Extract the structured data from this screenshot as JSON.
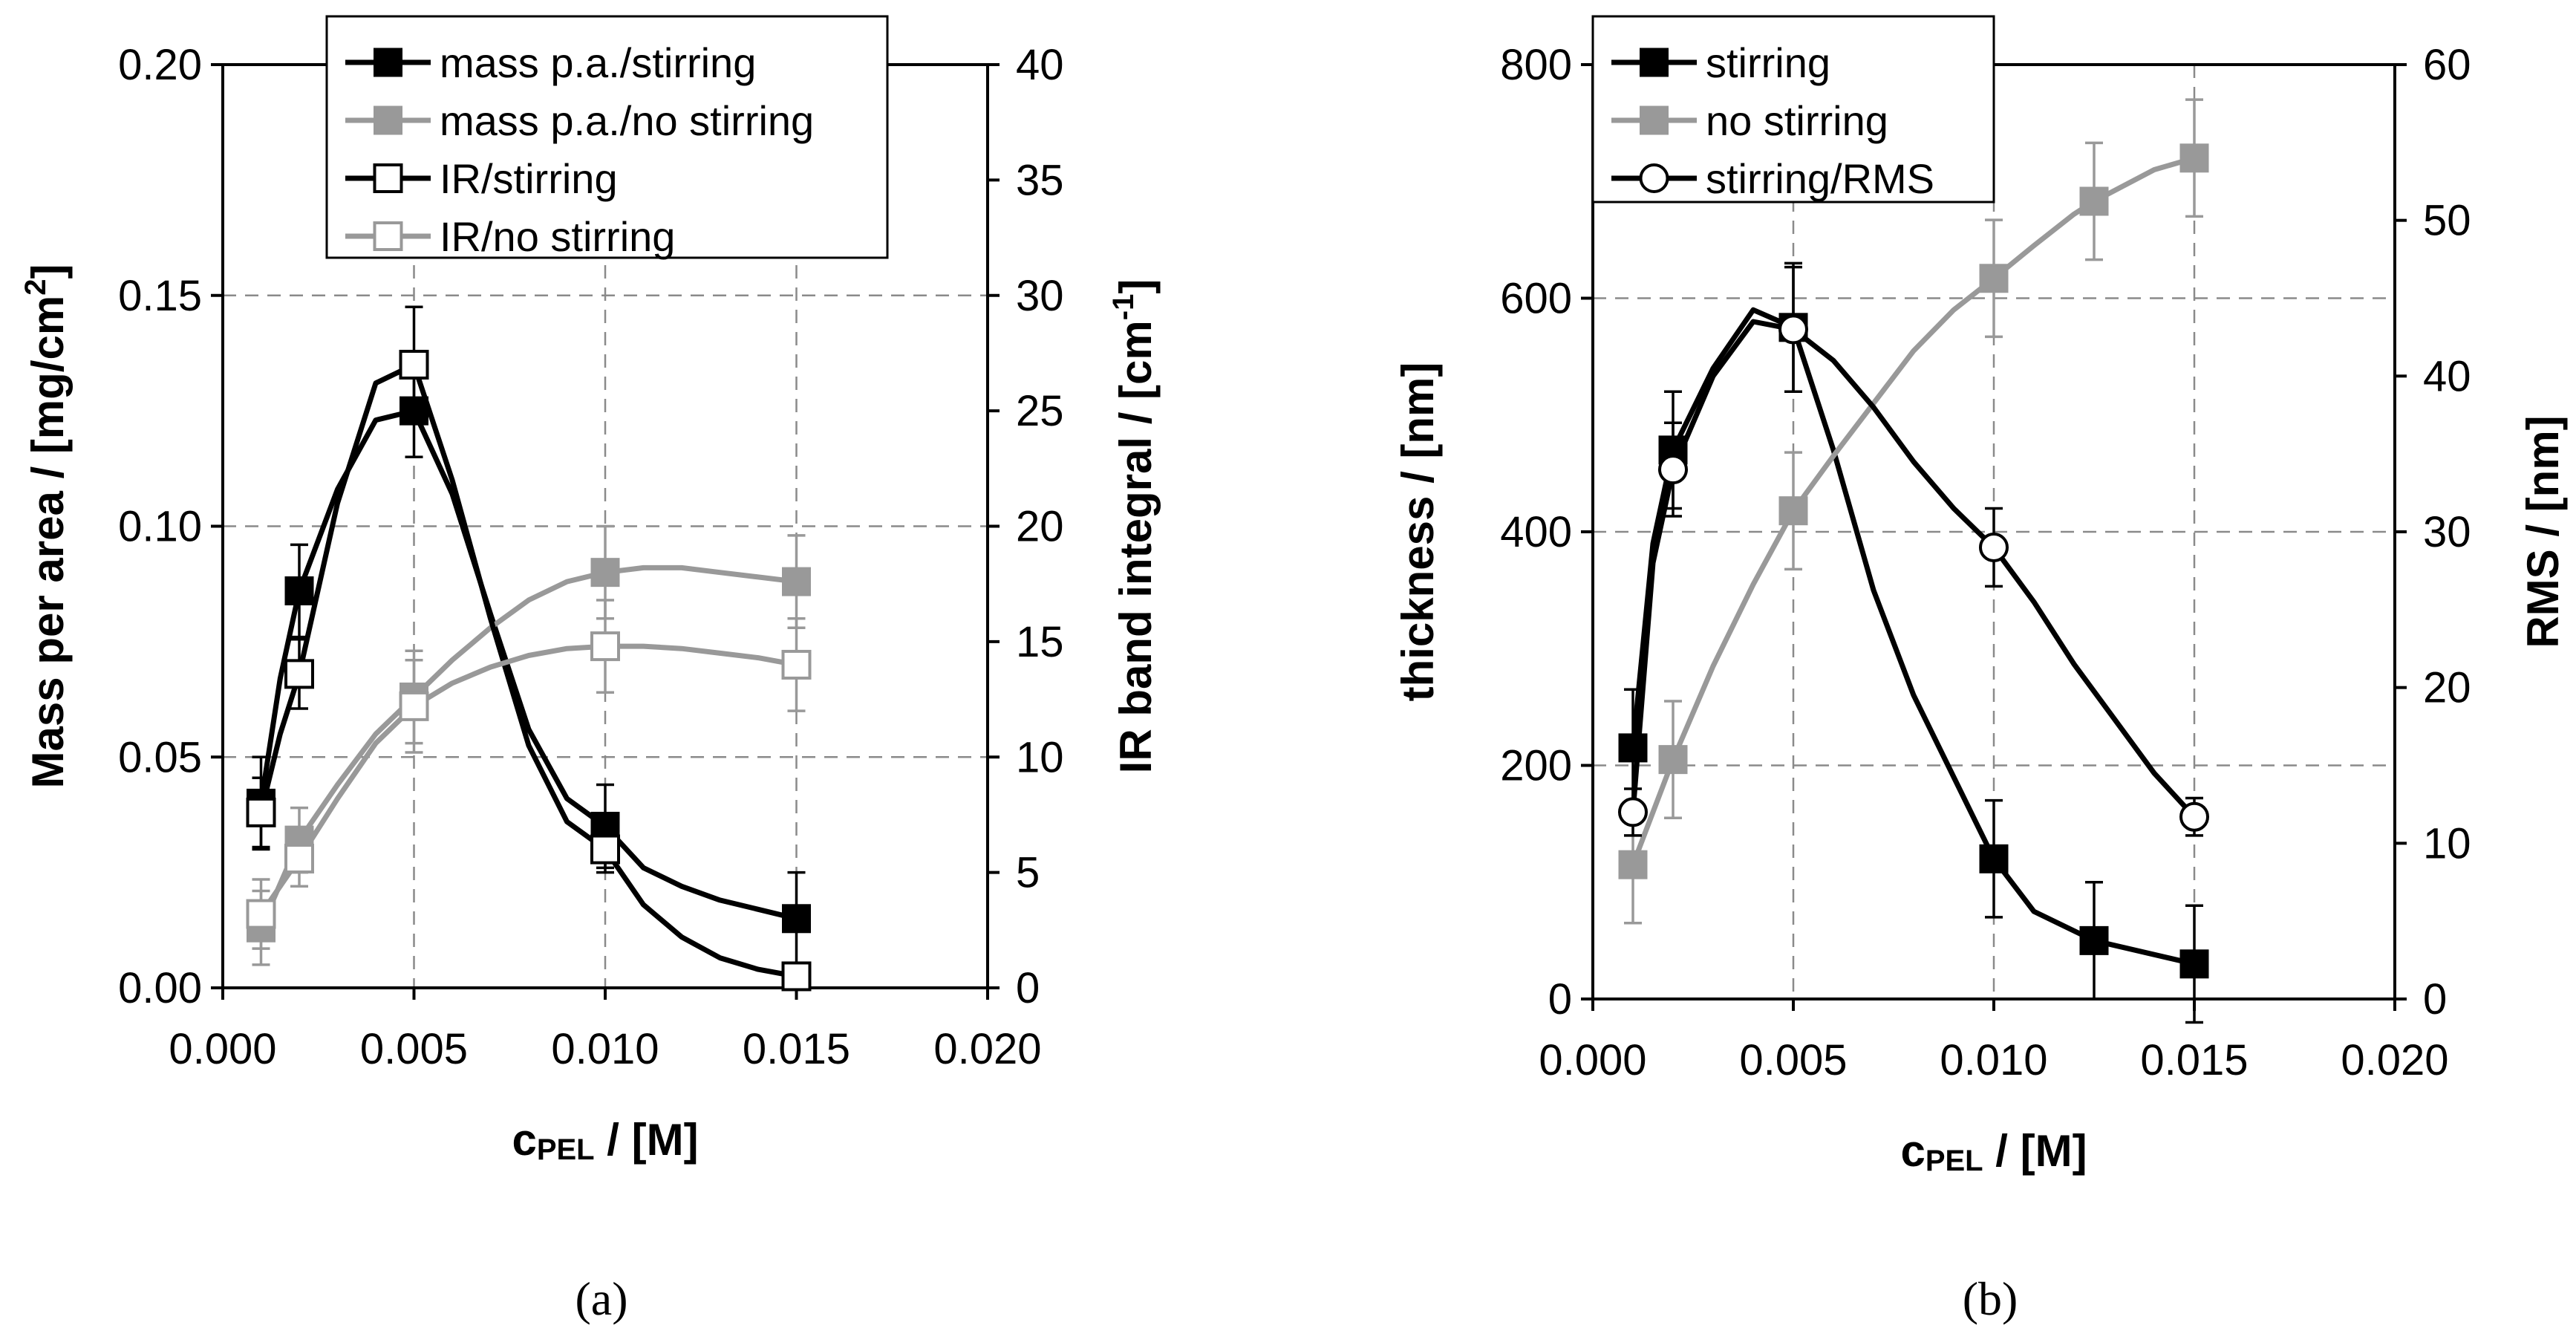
{
  "chart_data": [
    {
      "type": "line",
      "panel": "a",
      "caption": "(a)",
      "xlabel_main": "c",
      "xlabel_sub": "PEL",
      "xlabel_rest": " / [M]",
      "ylabel_left": "Mass per area / [mg/cm",
      "ylabel_left_sup": "2",
      "ylabel_left_end": "]",
      "ylabel_right": "IR band integral / [cm",
      "ylabel_right_sup": "-1",
      "ylabel_right_end": "]",
      "xlim": [
        0,
        0.02
      ],
      "ylim_left": [
        0,
        0.2
      ],
      "ylim_right": [
        0,
        40
      ],
      "x_ticks": [
        "0.000",
        "0.005",
        "0.010",
        "0.015",
        "0.020"
      ],
      "y_left_ticks": [
        "0.00",
        "0.05",
        "0.10",
        "0.15",
        "0.20"
      ],
      "y_right_ticks": [
        "0",
        "5",
        "10",
        "15",
        "20",
        "25",
        "30",
        "35",
        "40"
      ],
      "grid": "dashed",
      "legend_position": "top-center",
      "series": [
        {
          "name": "mass p.a./stirring",
          "axis": "left",
          "color": "#000000",
          "marker": "square-filled",
          "x": [
            0.001,
            0.002,
            0.005,
            0.01,
            0.015
          ],
          "y": [
            0.04,
            0.086,
            0.125,
            0.035,
            0.015
          ],
          "err": [
            0.01,
            0.01,
            0.01,
            0.009,
            0.01
          ],
          "curve_x": [
            0.001,
            0.0015,
            0.002,
            0.003,
            0.004,
            0.005,
            0.006,
            0.007,
            0.008,
            0.009,
            0.01,
            0.011,
            0.012,
            0.013,
            0.014,
            0.015
          ],
          "curve_y": [
            0.04,
            0.067,
            0.086,
            0.108,
            0.123,
            0.125,
            0.107,
            0.081,
            0.056,
            0.041,
            0.035,
            0.026,
            0.022,
            0.019,
            0.017,
            0.015
          ]
        },
        {
          "name": "mass p.a./no stirring",
          "axis": "left",
          "color": "#999999",
          "marker": "square-filled",
          "x": [
            0.001,
            0.002,
            0.005,
            0.01,
            0.015
          ],
          "y": [
            0.013,
            0.032,
            0.063,
            0.09,
            0.088
          ],
          "err": [
            0.008,
            0.007,
            0.01,
            0.01,
            0.01
          ],
          "curve_x": [
            0.001,
            0.002,
            0.003,
            0.004,
            0.005,
            0.006,
            0.007,
            0.008,
            0.009,
            0.01,
            0.011,
            0.012,
            0.013,
            0.014,
            0.015
          ],
          "curve_y": [
            0.013,
            0.032,
            0.044,
            0.055,
            0.063,
            0.071,
            0.078,
            0.084,
            0.088,
            0.09,
            0.091,
            0.091,
            0.09,
            0.089,
            0.088
          ]
        },
        {
          "name": "IR/stirring",
          "axis": "right",
          "color": "#000000",
          "marker": "square-open",
          "x": [
            0.001,
            0.002,
            0.005,
            0.01,
            0.015
          ],
          "y": [
            7.6,
            13.6,
            27,
            6,
            0.5
          ],
          "err": [
            1.5,
            1.5,
            2.5,
            1.0,
            0.5
          ],
          "curve_x": [
            0.001,
            0.0015,
            0.002,
            0.003,
            0.004,
            0.005,
            0.006,
            0.007,
            0.008,
            0.009,
            0.01,
            0.011,
            0.012,
            0.013,
            0.014,
            0.015
          ],
          "curve_y": [
            7.6,
            11.0,
            13.6,
            21.0,
            26.2,
            27.0,
            22.0,
            16.0,
            10.5,
            7.2,
            6.0,
            3.6,
            2.2,
            1.3,
            0.8,
            0.5
          ]
        },
        {
          "name": "IR/no stirring",
          "axis": "right",
          "color": "#999999",
          "marker": "square-open",
          "x": [
            0.001,
            0.002,
            0.005,
            0.01,
            0.015
          ],
          "y": [
            3.2,
            5.6,
            12.2,
            14.8,
            14.0
          ],
          "err": [
            1.5,
            1.2,
            2.0,
            2.0,
            2.0
          ],
          "curve_x": [
            0.001,
            0.002,
            0.003,
            0.004,
            0.005,
            0.006,
            0.007,
            0.008,
            0.009,
            0.01,
            0.011,
            0.012,
            0.013,
            0.014,
            0.015
          ],
          "curve_y": [
            3.2,
            5.6,
            8.2,
            10.6,
            12.2,
            13.2,
            13.9,
            14.4,
            14.7,
            14.8,
            14.8,
            14.7,
            14.5,
            14.3,
            14.0
          ]
        }
      ]
    },
    {
      "type": "line",
      "panel": "b",
      "caption": "(b)",
      "xlabel_main": "c",
      "xlabel_sub": "PEL",
      "xlabel_rest": " / [M]",
      "ylabel_left": "thickness / [nm]",
      "ylabel_right": "RMS / [nm]",
      "xlim": [
        0,
        0.02
      ],
      "ylim_left": [
        0,
        800
      ],
      "ylim_right": [
        0,
        60
      ],
      "x_ticks": [
        "0.000",
        "0.005",
        "0.010",
        "0.015",
        "0.020"
      ],
      "y_left_ticks": [
        "0",
        "200",
        "400",
        "600",
        "800"
      ],
      "y_right_ticks": [
        "0",
        "10",
        "20",
        "30",
        "40",
        "50",
        "60"
      ],
      "grid": "dashed",
      "legend_position": "top-left",
      "series": [
        {
          "name": "stirring",
          "axis": "left",
          "color": "#000000",
          "marker": "square-filled",
          "x": [
            0.001,
            0.002,
            0.005,
            0.01,
            0.0125,
            0.015
          ],
          "y": [
            215,
            470,
            575,
            120,
            50,
            30
          ],
          "err": [
            50,
            50,
            55,
            50,
            50,
            50
          ],
          "curve_x": [
            0.001,
            0.0015,
            0.002,
            0.003,
            0.004,
            0.005,
            0.006,
            0.007,
            0.008,
            0.009,
            0.01,
            0.011,
            0.0125,
            0.015
          ],
          "curve_y": [
            215,
            390,
            470,
            540,
            590,
            575,
            470,
            350,
            260,
            190,
            120,
            75,
            50,
            30
          ]
        },
        {
          "name": "no stirring",
          "axis": "left",
          "color": "#999999",
          "marker": "square-filled",
          "x": [
            0.001,
            0.002,
            0.005,
            0.01,
            0.0125,
            0.015
          ],
          "y": [
            115,
            205,
            418,
            617,
            683,
            720
          ],
          "err": [
            50,
            50,
            50,
            50,
            50,
            50
          ],
          "curve_x": [
            0.001,
            0.002,
            0.003,
            0.004,
            0.005,
            0.006,
            0.007,
            0.008,
            0.009,
            0.01,
            0.011,
            0.012,
            0.0125,
            0.014,
            0.015
          ],
          "curve_y": [
            115,
            205,
            285,
            355,
            418,
            465,
            510,
            555,
            590,
            617,
            645,
            672,
            683,
            710,
            720
          ]
        },
        {
          "name": "stirring/RMS",
          "axis": "right",
          "color": "#000000",
          "marker": "circle-open",
          "x": [
            0.001,
            0.002,
            0.005,
            0.01,
            0.015
          ],
          "y": [
            12,
            34,
            43,
            29,
            11.7
          ],
          "err": [
            1.5,
            3.0,
            4.0,
            2.5,
            1.2
          ],
          "curve_x": [
            0.001,
            0.0015,
            0.002,
            0.003,
            0.004,
            0.005,
            0.006,
            0.007,
            0.008,
            0.009,
            0.01,
            0.011,
            0.012,
            0.013,
            0.014,
            0.015
          ],
          "curve_y": [
            12,
            28,
            34,
            40,
            43.5,
            43,
            41,
            38,
            34.5,
            31.5,
            29,
            25.5,
            21.5,
            18,
            14.5,
            11.7
          ]
        }
      ]
    }
  ]
}
